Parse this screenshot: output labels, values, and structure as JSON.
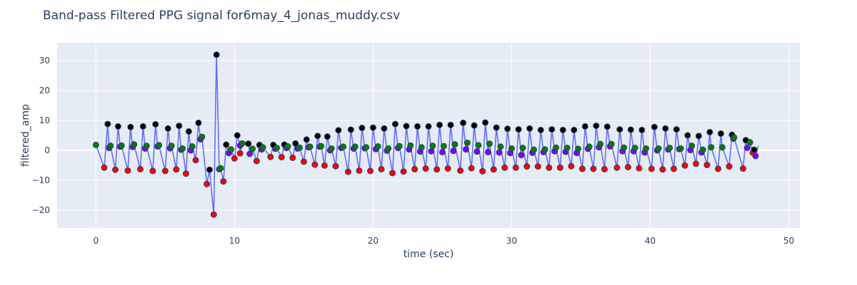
{
  "chart_data": {
    "type": "scatter",
    "title": "Band-pass Filtered PPG signal for6may_4_jonas_muddy.csv",
    "xlabel": "time (sec)",
    "ylabel": "filtered_amp",
    "xlim": [
      -2.8,
      50.8
    ],
    "ylim": [
      -26,
      36
    ],
    "x_ticks": [
      0,
      10,
      20,
      30,
      40,
      50
    ],
    "y_ticks": [
      -20,
      -10,
      0,
      10,
      20,
      30
    ],
    "grid": true,
    "colors": {
      "plot_bg": "#e5ecf6",
      "grid": "#ffffff",
      "line": "#636efa",
      "peak": "#000000",
      "trough": "#ff0000",
      "dicrotic": "#8000ff",
      "notch": "#008000",
      "marker_outline": "#2a3f5f"
    },
    "beats": [
      {
        "start": 0.0,
        "start_y": 1.8,
        "trough": [
          0.6,
          -5.8
        ],
        "peak": [
          0.85,
          8.8
        ],
        "dicrotic": [
          0.95,
          0.8
        ],
        "notch": [
          1.05,
          1.5
        ]
      },
      {
        "start": 1.05,
        "start_y": 1.5,
        "trough": [
          1.4,
          -6.5
        ],
        "peak": [
          1.6,
          8.0
        ],
        "dicrotic": [
          1.75,
          1.2
        ],
        "notch": [
          1.85,
          1.6
        ]
      },
      {
        "start": 1.85,
        "start_y": 1.6,
        "trough": [
          2.3,
          -6.8
        ],
        "peak": [
          2.5,
          7.8
        ],
        "dicrotic": [
          2.65,
          1.1
        ],
        "notch": [
          2.75,
          2.0
        ]
      },
      {
        "start": 2.75,
        "start_y": 2.0,
        "trough": [
          3.2,
          -6.3
        ],
        "peak": [
          3.4,
          8.0
        ],
        "dicrotic": [
          3.55,
          0.6
        ],
        "notch": [
          3.65,
          1.5
        ]
      },
      {
        "start": 3.65,
        "start_y": 1.5,
        "trough": [
          4.1,
          -6.9
        ],
        "peak": [
          4.3,
          8.7
        ],
        "dicrotic": [
          4.45,
          1.3
        ],
        "notch": [
          4.55,
          1.7
        ]
      },
      {
        "start": 4.55,
        "start_y": 1.7,
        "trough": [
          5.0,
          -6.9
        ],
        "peak": [
          5.2,
          7.3
        ],
        "dicrotic": [
          5.35,
          0.7
        ],
        "notch": [
          5.45,
          1.5
        ]
      },
      {
        "start": 5.45,
        "start_y": 1.5,
        "trough": [
          5.8,
          -6.4
        ],
        "peak": [
          6.0,
          8.2
        ],
        "dicrotic": [
          6.15,
          0.2
        ],
        "notch": [
          6.25,
          0.6
        ]
      },
      {
        "start": 6.25,
        "start_y": 0.6,
        "trough": [
          6.5,
          -7.8
        ],
        "peak": [
          6.7,
          6.3
        ],
        "dicrotic": [
          6.85,
          0.0
        ],
        "notch": [
          6.95,
          1.3
        ]
      },
      {
        "start": 6.95,
        "start_y": 1.3,
        "trough": [
          7.2,
          -3.3
        ],
        "peak": [
          7.4,
          9.2
        ],
        "dicrotic": [
          7.55,
          3.7
        ],
        "notch": [
          7.65,
          4.5
        ]
      },
      {
        "start": 7.65,
        "start_y": 4.5,
        "trough": [
          8.0,
          -11.3
        ],
        "peak": [
          8.7,
          32.0
        ],
        "dicrotic": [
          8.9,
          -6.3
        ],
        "notch": [
          9.0,
          -6.0
        ],
        "extra_trough": [
          8.5,
          -21.5
        ],
        "extra_peak": [
          8.2,
          -6.5
        ]
      },
      {
        "start": 9.0,
        "start_y": -6.0,
        "trough": [
          9.2,
          -10.4
        ],
        "peak": [
          9.4,
          1.9
        ],
        "dicrotic": [
          9.6,
          -0.9
        ],
        "notch": [
          9.75,
          0.3
        ]
      },
      {
        "start": 9.75,
        "start_y": 0.3,
        "trough": [
          10.0,
          -2.7
        ],
        "peak": [
          10.2,
          5.0
        ],
        "dicrotic": [
          10.4,
          1.6
        ],
        "notch": [
          10.55,
          2.3
        ]
      },
      {
        "start": 10.55,
        "start_y": 2.3,
        "trough": [
          10.4,
          -1.0
        ],
        "peak": [
          11.0,
          2.2
        ],
        "dicrotic": [
          11.1,
          -1.2
        ],
        "notch": [
          11.3,
          0.5
        ]
      },
      {
        "start": 11.3,
        "start_y": 0.5,
        "trough": [
          11.6,
          -3.6
        ],
        "peak": [
          11.8,
          1.8
        ],
        "dicrotic": [
          11.95,
          0.3
        ],
        "notch": [
          12.05,
          1.0
        ]
      },
      {
        "start": 12.05,
        "start_y": 1.0,
        "trough": [
          12.6,
          -2.2
        ],
        "peak": [
          12.8,
          1.8
        ],
        "dicrotic": [
          12.95,
          0.5
        ],
        "notch": [
          13.05,
          0.8
        ]
      },
      {
        "start": 13.05,
        "start_y": 0.8,
        "trough": [
          13.4,
          -2.3
        ],
        "peak": [
          13.6,
          1.9
        ],
        "dicrotic": [
          13.75,
          0.8
        ],
        "notch": [
          13.85,
          1.3
        ]
      },
      {
        "start": 13.85,
        "start_y": 1.3,
        "trough": [
          14.2,
          -2.5
        ],
        "peak": [
          14.4,
          2.3
        ],
        "dicrotic": [
          14.55,
          0.6
        ],
        "notch": [
          14.7,
          0.9
        ]
      },
      {
        "start": 14.7,
        "start_y": 0.9,
        "trough": [
          15.0,
          -3.8
        ],
        "peak": [
          15.2,
          3.6
        ],
        "dicrotic": [
          15.35,
          1.0
        ],
        "notch": [
          15.45,
          1.2
        ]
      },
      {
        "start": 15.45,
        "start_y": 1.2,
        "trough": [
          15.8,
          -4.8
        ],
        "peak": [
          16.0,
          4.8
        ],
        "dicrotic": [
          16.15,
          1.2
        ],
        "notch": [
          16.25,
          1.4
        ]
      },
      {
        "start": 16.25,
        "start_y": 1.4,
        "trough": [
          16.5,
          -5.1
        ],
        "peak": [
          16.7,
          4.6
        ],
        "dicrotic": [
          16.9,
          0.0
        ],
        "notch": [
          17.0,
          0.6
        ]
      },
      {
        "start": 17.0,
        "start_y": 0.6,
        "trough": [
          17.3,
          -5.3
        ],
        "peak": [
          17.5,
          6.7
        ],
        "dicrotic": [
          17.7,
          0.8
        ],
        "notch": [
          17.85,
          1.2
        ]
      },
      {
        "start": 17.85,
        "start_y": 1.2,
        "trough": [
          18.2,
          -7.2
        ],
        "peak": [
          18.4,
          6.9
        ],
        "dicrotic": [
          18.6,
          0.6
        ],
        "notch": [
          18.7,
          1.2
        ]
      },
      {
        "start": 18.7,
        "start_y": 1.2,
        "trough": [
          19.0,
          -6.8
        ],
        "peak": [
          19.2,
          7.5
        ],
        "dicrotic": [
          19.4,
          0.7
        ],
        "notch": [
          19.5,
          1.0
        ]
      },
      {
        "start": 19.5,
        "start_y": 1.0,
        "trough": [
          19.8,
          -6.9
        ],
        "peak": [
          20.0,
          7.6
        ],
        "dicrotic": [
          20.2,
          0.4
        ],
        "notch": [
          20.35,
          1.3
        ]
      },
      {
        "start": 20.35,
        "start_y": 1.3,
        "trough": [
          20.6,
          -6.3
        ],
        "peak": [
          20.8,
          7.3
        ],
        "dicrotic": [
          21.0,
          -0.1
        ],
        "notch": [
          21.1,
          0.6
        ]
      },
      {
        "start": 21.1,
        "start_y": 0.6,
        "trough": [
          21.4,
          -7.6
        ],
        "peak": [
          21.6,
          8.8
        ],
        "dicrotic": [
          21.8,
          0.8
        ],
        "notch": [
          21.9,
          1.4
        ]
      },
      {
        "start": 21.9,
        "start_y": 1.4,
        "trough": [
          22.2,
          -7.1
        ],
        "peak": [
          22.4,
          8.1
        ],
        "dicrotic": [
          22.6,
          0.3
        ],
        "notch": [
          22.7,
          1.6
        ]
      },
      {
        "start": 22.7,
        "start_y": 1.6,
        "trough": [
          23.0,
          -6.3
        ],
        "peak": [
          23.2,
          8.0
        ],
        "dicrotic": [
          23.4,
          -0.4
        ],
        "notch": [
          23.5,
          1.0
        ]
      },
      {
        "start": 23.5,
        "start_y": 1.0,
        "trough": [
          23.8,
          -6.1
        ],
        "peak": [
          24.0,
          8.0
        ],
        "dicrotic": [
          24.2,
          -0.3
        ],
        "notch": [
          24.3,
          1.5
        ]
      },
      {
        "start": 24.3,
        "start_y": 1.5,
        "trough": [
          24.6,
          -6.4
        ],
        "peak": [
          24.8,
          8.5
        ],
        "dicrotic": [
          25.0,
          -0.6
        ],
        "notch": [
          25.1,
          1.4
        ]
      },
      {
        "start": 25.1,
        "start_y": 1.4,
        "trough": [
          25.4,
          -6.1
        ],
        "peak": [
          25.6,
          8.5
        ],
        "dicrotic": [
          25.8,
          -0.2
        ],
        "notch": [
          25.9,
          2.0
        ]
      },
      {
        "start": 25.9,
        "start_y": 2.0,
        "trough": [
          26.3,
          -6.8
        ],
        "peak": [
          26.5,
          9.2
        ],
        "dicrotic": [
          26.7,
          0.3
        ],
        "notch": [
          26.8,
          2.5
        ]
      },
      {
        "start": 26.8,
        "start_y": 2.5,
        "trough": [
          27.1,
          -6.0
        ],
        "peak": [
          27.3,
          8.3
        ],
        "dicrotic": [
          27.5,
          -0.4
        ],
        "notch": [
          27.6,
          1.7
        ]
      },
      {
        "start": 27.6,
        "start_y": 1.7,
        "trough": [
          27.9,
          -7.0
        ],
        "peak": [
          28.1,
          9.3
        ],
        "dicrotic": [
          28.3,
          -0.6
        ],
        "notch": [
          28.4,
          2.2
        ]
      },
      {
        "start": 28.4,
        "start_y": 2.2,
        "trough": [
          28.7,
          -6.4
        ],
        "peak": [
          28.9,
          7.6
        ],
        "dicrotic": [
          29.1,
          -0.7
        ],
        "notch": [
          29.2,
          1.2
        ]
      },
      {
        "start": 29.2,
        "start_y": 1.2,
        "trough": [
          29.5,
          -5.8
        ],
        "peak": [
          29.7,
          7.2
        ],
        "dicrotic": [
          29.9,
          -0.9
        ],
        "notch": [
          30.0,
          0.6
        ]
      },
      {
        "start": 30.0,
        "start_y": 0.6,
        "trough": [
          30.3,
          -5.8
        ],
        "peak": [
          30.5,
          7.0
        ],
        "dicrotic": [
          30.7,
          -1.6
        ],
        "notch": [
          30.8,
          0.8
        ]
      },
      {
        "start": 30.8,
        "start_y": 0.8,
        "trough": [
          31.1,
          -5.4
        ],
        "peak": [
          31.3,
          7.3
        ],
        "dicrotic": [
          31.5,
          -0.8
        ],
        "notch": [
          31.6,
          0.2
        ]
      },
      {
        "start": 31.6,
        "start_y": 0.2,
        "trough": [
          31.9,
          -5.4
        ],
        "peak": [
          32.1,
          6.8
        ],
        "dicrotic": [
          32.3,
          -0.6
        ],
        "notch": [
          32.4,
          0.3
        ]
      },
      {
        "start": 32.4,
        "start_y": 0.3,
        "trough": [
          32.7,
          -5.8
        ],
        "peak": [
          32.9,
          7.0
        ],
        "dicrotic": [
          33.1,
          -0.3
        ],
        "notch": [
          33.2,
          0.9
        ]
      },
      {
        "start": 33.2,
        "start_y": 0.9,
        "trough": [
          33.5,
          -5.8
        ],
        "peak": [
          33.7,
          6.8
        ],
        "dicrotic": [
          33.9,
          -0.5
        ],
        "notch": [
          34.0,
          0.8
        ]
      },
      {
        "start": 34.0,
        "start_y": 0.8,
        "trough": [
          34.3,
          -5.3
        ],
        "peak": [
          34.5,
          6.8
        ],
        "dicrotic": [
          34.7,
          -0.9
        ],
        "notch": [
          34.8,
          0.5
        ]
      },
      {
        "start": 34.8,
        "start_y": 0.5,
        "trough": [
          35.1,
          -6.2
        ],
        "peak": [
          35.3,
          8.0
        ],
        "dicrotic": [
          35.5,
          0.5
        ],
        "notch": [
          35.6,
          1.2
        ]
      },
      {
        "start": 35.6,
        "start_y": 1.2,
        "trough": [
          35.9,
          -6.2
        ],
        "peak": [
          36.1,
          8.2
        ],
        "dicrotic": [
          36.3,
          1.0
        ],
        "notch": [
          36.4,
          2.1
        ]
      },
      {
        "start": 36.4,
        "start_y": 2.1,
        "trough": [
          36.7,
          -6.3
        ],
        "peak": [
          36.9,
          7.9
        ],
        "dicrotic": [
          37.1,
          1.3
        ],
        "notch": [
          37.2,
          2.1
        ]
      },
      {
        "start": 37.2,
        "start_y": 2.1,
        "trough": [
          37.6,
          -5.8
        ],
        "peak": [
          37.8,
          7.0
        ],
        "dicrotic": [
          38.0,
          -0.3
        ],
        "notch": [
          38.1,
          0.9
        ]
      },
      {
        "start": 38.1,
        "start_y": 0.9,
        "trough": [
          38.4,
          -5.6
        ],
        "peak": [
          38.6,
          6.9
        ],
        "dicrotic": [
          38.8,
          -0.3
        ],
        "notch": [
          38.9,
          0.8
        ]
      },
      {
        "start": 38.9,
        "start_y": 0.8,
        "trough": [
          39.2,
          -6.0
        ],
        "peak": [
          39.4,
          6.8
        ],
        "dicrotic": [
          39.6,
          -0.7
        ],
        "notch": [
          39.7,
          0.6
        ]
      },
      {
        "start": 39.7,
        "start_y": 0.6,
        "trough": [
          40.1,
          -6.2
        ],
        "peak": [
          40.3,
          7.8
        ],
        "dicrotic": [
          40.5,
          0.0
        ],
        "notch": [
          40.6,
          0.6
        ]
      },
      {
        "start": 40.6,
        "start_y": 0.6,
        "trough": [
          40.9,
          -6.4
        ],
        "peak": [
          41.1,
          7.3
        ],
        "dicrotic": [
          41.3,
          0.3
        ],
        "notch": [
          41.4,
          0.8
        ]
      },
      {
        "start": 41.4,
        "start_y": 0.8,
        "trough": [
          41.7,
          -6.2
        ],
        "peak": [
          41.9,
          7.0
        ],
        "dicrotic": [
          42.1,
          0.4
        ],
        "notch": [
          42.2,
          0.6
        ]
      },
      {
        "start": 42.2,
        "start_y": 0.6,
        "trough": [
          42.5,
          -5.1
        ],
        "peak": [
          42.7,
          5.0
        ],
        "dicrotic": [
          42.9,
          0.1
        ],
        "notch": [
          43.0,
          1.5
        ]
      },
      {
        "start": 43.0,
        "start_y": 1.5,
        "trough": [
          43.3,
          -4.5
        ],
        "peak": [
          43.5,
          4.8
        ],
        "dicrotic": [
          43.7,
          -0.7
        ],
        "notch": [
          43.8,
          0.2
        ]
      },
      {
        "start": 43.8,
        "start_y": 0.2,
        "trough": [
          44.1,
          -4.9
        ],
        "peak": [
          44.3,
          6.1
        ],
        "dicrotic": null,
        "notch": null
      },
      {
        "start": 44.4,
        "start_y": 1.0,
        "trough": [
          44.9,
          -6.2
        ],
        "peak": [
          45.1,
          5.6
        ],
        "dicrotic": null,
        "notch": null
      },
      {
        "start": 45.2,
        "start_y": 1.0,
        "trough": [
          45.7,
          -5.4
        ],
        "peak": [
          45.9,
          5.2
        ],
        "dicrotic": [
          46.0,
          3.9
        ],
        "notch": [
          46.05,
          4.3
        ]
      },
      {
        "start": 46.05,
        "start_y": 4.3,
        "trough": [
          46.7,
          -6.1
        ],
        "peak": [
          46.9,
          3.4
        ],
        "dicrotic": [
          47.0,
          0.8
        ],
        "notch": [
          47.2,
          2.7
        ]
      },
      {
        "start": 47.2,
        "start_y": 2.7,
        "trough": [
          47.4,
          -0.8
        ],
        "peak": [
          47.5,
          0.2
        ],
        "dicrotic": [
          47.6,
          -1.9
        ],
        "notch": [
          47.8,
          1.5
        ]
      }
    ]
  }
}
